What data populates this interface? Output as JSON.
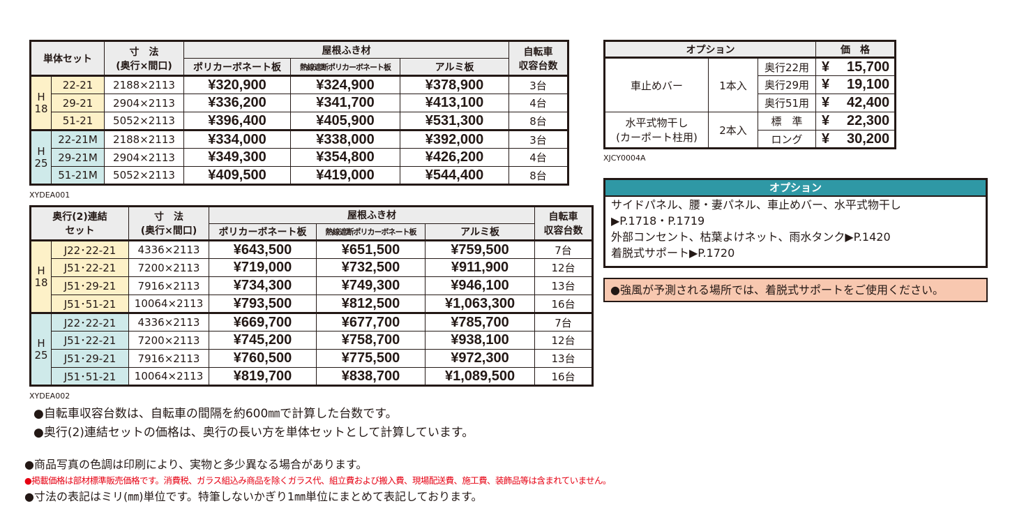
{
  "table1": {
    "header": {
      "set": [
        "単体セット"
      ],
      "dims": "寸　法",
      "dims_sub": "(奥行×間口)",
      "roof": "屋根ふき材",
      "roof_cols": [
        "ポリカーボネート板",
        "熱線遮断ポリカーボネート板",
        "アルミ板"
      ],
      "bike": [
        "自転車",
        "収容台数"
      ]
    },
    "groups": [
      {
        "label": [
          "H",
          "18"
        ],
        "rows": [
          [
            "22-21",
            "2188×2113",
            "¥320,900",
            "¥324,900",
            "¥378,900",
            "3台"
          ],
          [
            "29-21",
            "2904×2113",
            "¥336,200",
            "¥341,700",
            "¥413,100",
            "4台"
          ],
          [
            "51-21",
            "5052×2113",
            "¥396,400",
            "¥405,900",
            "¥531,300",
            "8台"
          ]
        ]
      },
      {
        "label": [
          "H",
          "25"
        ],
        "rows": [
          [
            "22-21M",
            "2188×2113",
            "¥334,000",
            "¥338,000",
            "¥392,000",
            "3台"
          ],
          [
            "29-21M",
            "2904×2113",
            "¥349,300",
            "¥354,800",
            "¥426,200",
            "4台"
          ],
          [
            "51-21M",
            "5052×2113",
            "¥409,500",
            "¥419,000",
            "¥544,400",
            "8台"
          ]
        ]
      }
    ],
    "caption": "XYDEA001"
  },
  "table2": {
    "header": {
      "set": [
        "奥行(2)連結",
        "セット"
      ],
      "dims": "寸　法",
      "dims_sub": "(奥行×間口)",
      "roof": "屋根ふき材",
      "roof_cols": [
        "ポリカーボネート板",
        "熱線遮断ポリカーボネート板",
        "アルミ板"
      ],
      "bike": [
        "自転車",
        "収容台数"
      ]
    },
    "groups": [
      {
        "label": [
          "H",
          "18"
        ],
        "rows": [
          [
            "J22･22-21",
            "4336×2113",
            "¥643,500",
            "¥651,500",
            "¥759,500",
            "7台"
          ],
          [
            "J51･22-21",
            "7200×2113",
            "¥719,000",
            "¥732,500",
            "¥911,900",
            "12台"
          ],
          [
            "J51･29-21",
            "7916×2113",
            "¥734,300",
            "¥749,300",
            "¥946,100",
            "13台"
          ],
          [
            "J51･51-21",
            "10064×2113",
            "¥793,500",
            "¥812,500",
            "¥1,063,300",
            "16台"
          ]
        ]
      },
      {
        "label": [
          "H",
          "25"
        ],
        "rows": [
          [
            "J22･22-21",
            "4336×2113",
            "¥669,700",
            "¥677,700",
            "¥785,700",
            "7台"
          ],
          [
            "J51･22-21",
            "7200×2113",
            "¥745,200",
            "¥758,700",
            "¥938,100",
            "12台"
          ],
          [
            "J51･29-21",
            "7916×2113",
            "¥760,500",
            "¥775,500",
            "¥972,300",
            "13台"
          ],
          [
            "J51･51-21",
            "10064×2113",
            "¥819,700",
            "¥838,700",
            "¥1,089,500",
            "16台"
          ]
        ]
      }
    ],
    "caption": "XYDEA002"
  },
  "options_table": {
    "header": {
      "option": "オプション",
      "price": "価　格"
    },
    "currency": "¥",
    "items": [
      {
        "name": [
          "車止めバー"
        ],
        "qty": "1本入",
        "variants": [
          {
            "depth": "奥行22用",
            "price": "15,700"
          },
          {
            "depth": "奥行29用",
            "price": "19,100"
          },
          {
            "depth": "奥行51用",
            "price": "42,400"
          }
        ]
      },
      {
        "name": [
          "水平式物干し",
          "(カーポート柱用)"
        ],
        "qty": "2本入",
        "variants": [
          {
            "depth": "標　準",
            "price": "22,300"
          },
          {
            "depth": "ロング",
            "price": "30,200"
          }
        ]
      }
    ],
    "caption": "XJCY0004A"
  },
  "options_box": {
    "title": "オプション",
    "lines": [
      "サイドパネル、腰・妻パネル、車止めバー、水平式物干し",
      "▶P.1718・P.1719",
      "外部コンセント、枯葉よけネット、雨水タンク▶P.1420",
      "着脱式サポート▶P.1720"
    ]
  },
  "warning": "●強風が予測される場所では、着脱式サポートをご使用ください。",
  "notes": [
    "●自転車収容台数は、自転車の間隔を約600㎜で計算した台数です。",
    "●奥行(2)連結セットの価格は、奥行の長い方を単体セットとして計算しています。"
  ],
  "footer_notes": [
    "●商品写真の色調は印刷により、実物と多少異なる場合があります。",
    "●掲載価格は部材標準販売価格です。消費税、ガラス組込み商品を除くガラス代、組立費および搬入費、現場配送費、施工費、装飾品等は含まれていません。",
    "●寸法の表記はミリ(㎜)単位です。特筆しないかぎり1㎜単位にまとめて表記しております。"
  ]
}
